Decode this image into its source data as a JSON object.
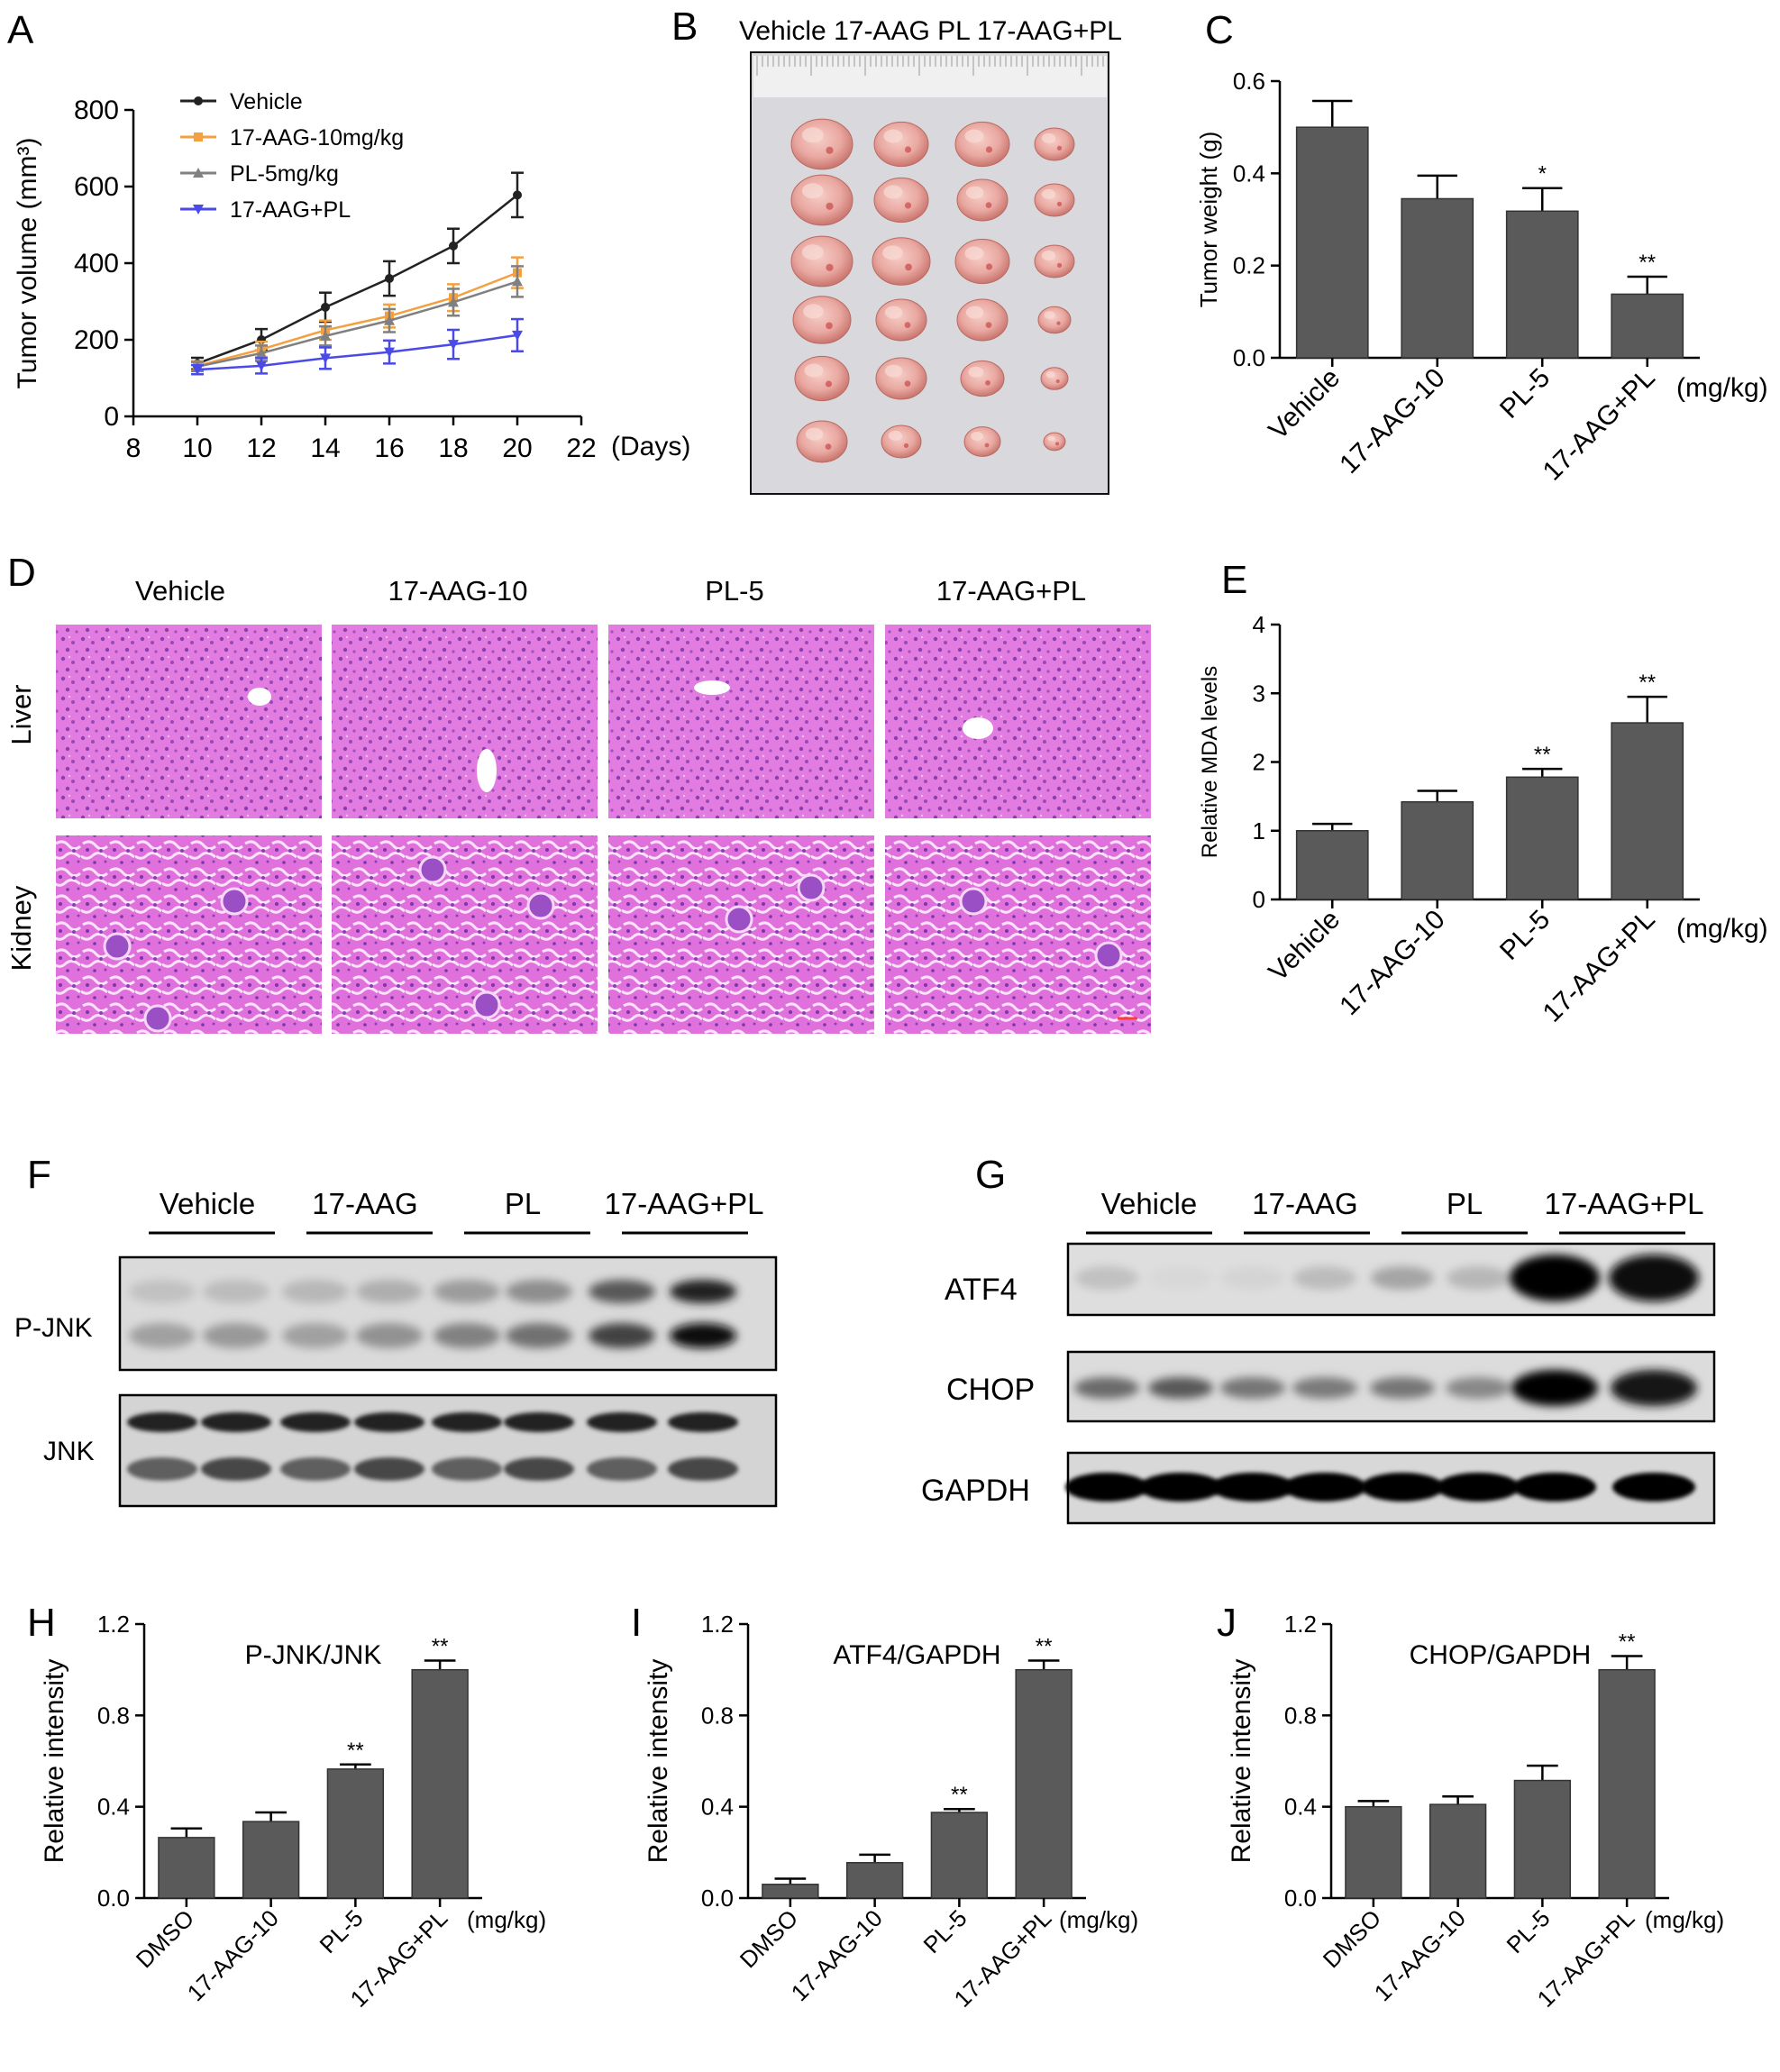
{
  "panel_letters": [
    "A",
    "B",
    "C",
    "D",
    "E",
    "F",
    "G",
    "H",
    "I",
    "J"
  ],
  "chart_data": [
    {
      "panel": "A",
      "type": "line",
      "ylabel": "Tumor volume (mm³)",
      "xlabel": "(Days)",
      "xlim": [
        8,
        22
      ],
      "ylim": [
        0,
        800
      ],
      "xticks": [
        "8",
        "10",
        "12",
        "14",
        "16",
        "18",
        "20",
        "22"
      ],
      "yticks": [
        "0",
        "200",
        "400",
        "600",
        "800"
      ],
      "legend_position": "top-left",
      "x": [
        10,
        12,
        14,
        16,
        18,
        20
      ],
      "series": [
        {
          "name": "Vehicle",
          "color": "#222222",
          "marker": "circle",
          "values": [
            138,
            200,
            285,
            360,
            445,
            578
          ],
          "errors": [
            15,
            28,
            38,
            45,
            45,
            58
          ]
        },
        {
          "name": "17-AAG-10mg/kg",
          "color": "#f4a040",
          "marker": "square",
          "values": [
            132,
            175,
            225,
            262,
            310,
            375
          ],
          "errors": [
            12,
            20,
            25,
            30,
            35,
            40
          ]
        },
        {
          "name": "PL-5mg/kg",
          "color": "#808080",
          "marker": "triangle-up",
          "values": [
            130,
            165,
            210,
            250,
            298,
            352
          ],
          "errors": [
            12,
            20,
            25,
            30,
            35,
            40
          ]
        },
        {
          "name": "17-AAG+PL",
          "color": "#4a4ae8",
          "marker": "triangle-down",
          "values": [
            122,
            132,
            152,
            168,
            188,
            212
          ],
          "errors": [
            12,
            20,
            28,
            30,
            38,
            42
          ]
        }
      ]
    },
    {
      "panel": "C",
      "type": "bar",
      "ylabel": "Tumor weight (g)",
      "unit_label": "(mg/kg)",
      "ylim": [
        0,
        0.6
      ],
      "yticks": [
        "0.0",
        "0.2",
        "0.4",
        "0.6"
      ],
      "categories": [
        "Vehicle",
        "17-AAG-10",
        "PL-5",
        "17-AAG+PL"
      ],
      "values": [
        0.5,
        0.345,
        0.318,
        0.138
      ],
      "errors": [
        0.057,
        0.05,
        0.05,
        0.038
      ],
      "annotations": [
        "",
        "",
        "*",
        "**"
      ],
      "bar_color": "#5a5a5a"
    },
    {
      "panel": "E",
      "type": "bar",
      "ylabel": "Relative MDA levels",
      "unit_label": "(mg/kg)",
      "ylim": [
        0,
        4
      ],
      "yticks": [
        "0",
        "1",
        "2",
        "3",
        "4"
      ],
      "categories": [
        "Vehicle",
        "17-AAG-10",
        "PL-5",
        "17-AAG+PL"
      ],
      "values": [
        1.0,
        1.42,
        1.78,
        2.57
      ],
      "errors": [
        0.1,
        0.16,
        0.12,
        0.38
      ],
      "annotations": [
        "",
        "",
        "**",
        "**"
      ],
      "bar_color": "#5a5a5a"
    },
    {
      "panel": "H",
      "type": "bar",
      "title": "P-JNK/JNK",
      "ylabel": "Relative intensity",
      "unit_label": "(mg/kg)",
      "ylim": [
        0,
        1.2
      ],
      "yticks": [
        "0.0",
        "0.4",
        "0.8",
        "1.2"
      ],
      "categories": [
        "DMSO",
        "17-AAG-10",
        "PL-5",
        "17-AAG+PL"
      ],
      "values": [
        0.265,
        0.335,
        0.565,
        1.0
      ],
      "errors": [
        0.04,
        0.04,
        0.02,
        0.04
      ],
      "annotations": [
        "",
        "",
        "**",
        "**"
      ],
      "bar_color": "#5a5a5a"
    },
    {
      "panel": "I",
      "type": "bar",
      "title": "ATF4/GAPDH",
      "ylabel": "Relative intensity",
      "unit_label": "(mg/kg)",
      "ylim": [
        0,
        1.2
      ],
      "yticks": [
        "0.0",
        "0.4",
        "0.8",
        "1.2"
      ],
      "categories": [
        "DMSO",
        "17-AAG-10",
        "PL-5",
        "17-AAG+PL"
      ],
      "values": [
        0.06,
        0.155,
        0.375,
        1.0
      ],
      "errors": [
        0.025,
        0.035,
        0.015,
        0.04
      ],
      "annotations": [
        "",
        "",
        "**",
        "**"
      ],
      "bar_color": "#5a5a5a"
    },
    {
      "panel": "J",
      "type": "bar",
      "title": "CHOP/GAPDH",
      "ylabel": "Relative intensity",
      "unit_label": "(mg/kg)",
      "ylim": [
        0,
        1.2
      ],
      "yticks": [
        "0.0",
        "0.4",
        "0.8",
        "1.2"
      ],
      "categories": [
        "DMSO",
        "17-AAG-10",
        "PL-5",
        "17-AAG+PL"
      ],
      "values": [
        0.4,
        0.41,
        0.515,
        1.0
      ],
      "errors": [
        0.025,
        0.035,
        0.065,
        0.06
      ],
      "annotations": [
        "",
        "",
        "",
        "**"
      ],
      "bar_color": "#5a5a5a"
    }
  ],
  "tumor_photo": {
    "header": "Vehicle 17-AAG PL 17-AAG+PL",
    "background": "#d8d8dc",
    "tissue_color": "#e9a9a2"
  },
  "histology": {
    "columns": [
      "Vehicle",
      "17-AAG-10",
      "PL-5",
      "17-AAG+PL"
    ],
    "rows": [
      "Liver",
      "Kidney"
    ],
    "stain_color": "#dc6ed8"
  },
  "blot_f": {
    "groups": [
      "Vehicle",
      "17-AAG",
      "PL",
      "17-AAG+PL"
    ],
    "rows": [
      "P-JNK",
      "JNK"
    ]
  },
  "blot_g": {
    "groups": [
      "Vehicle",
      "17-AAG",
      "PL",
      "17-AAG+PL"
    ],
    "rows": [
      "ATF4",
      "CHOP",
      "GAPDH"
    ]
  }
}
